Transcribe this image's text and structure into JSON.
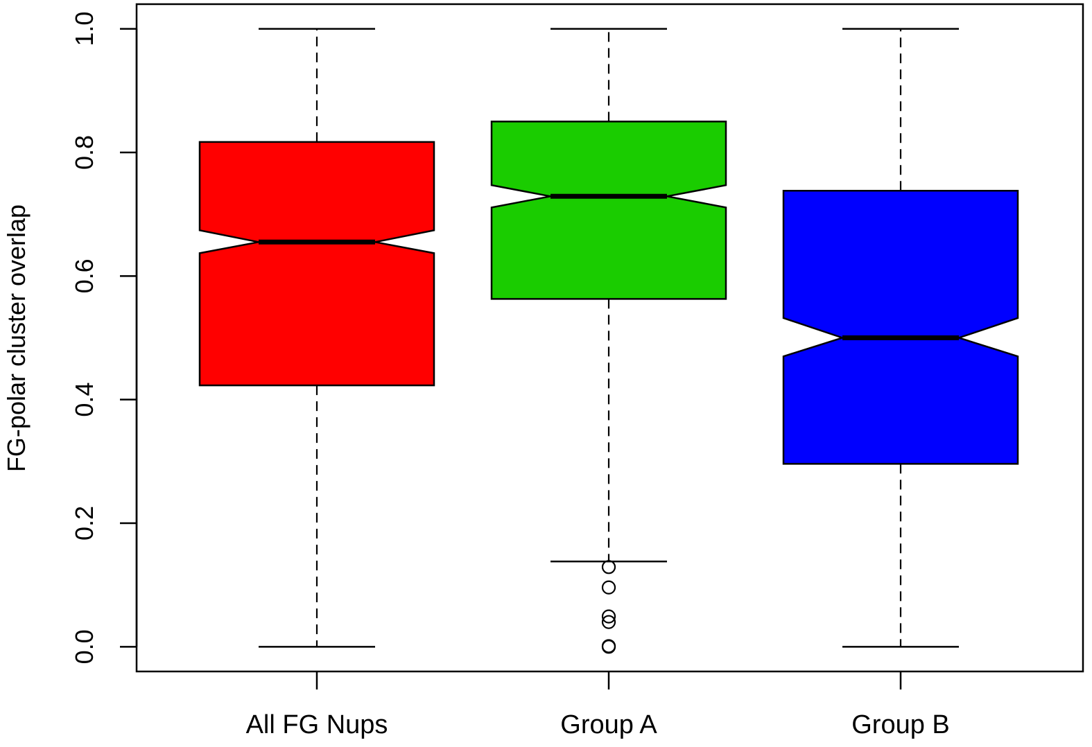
{
  "chart_data": {
    "type": "boxplot",
    "notched": true,
    "title": "",
    "xlabel": "",
    "ylabel": "FG-polar cluster overlap",
    "ylim": [
      -0.04,
      1.04
    ],
    "yticks": [
      0.0,
      0.2,
      0.4,
      0.6,
      0.8,
      1.0
    ],
    "ytick_labels": [
      "0.0",
      "0.2",
      "0.4",
      "0.6",
      "0.8",
      "1.0"
    ],
    "grid": false,
    "categories": [
      "All FG Nups",
      "Group A",
      "Group B"
    ],
    "boxes": [
      {
        "category": "All FG Nups",
        "color": "#ff0000",
        "whisker_low": 0.0,
        "q1": 0.423,
        "median": 0.655,
        "q3": 0.817,
        "whisker_high": 1.0,
        "notch_low": 0.637,
        "notch_high": 0.674,
        "outliers": []
      },
      {
        "category": "Group A",
        "color": "#1acc00",
        "whisker_low": 0.138,
        "q1": 0.563,
        "median": 0.729,
        "q3": 0.85,
        "whisker_high": 1.0,
        "notch_low": 0.711,
        "notch_high": 0.747,
        "outliers": [
          0.129,
          0.096,
          0.049,
          0.04,
          0.001,
          0.0
        ]
      },
      {
        "category": "Group B",
        "color": "#0000ff",
        "whisker_low": 0.0,
        "q1": 0.296,
        "median": 0.5,
        "q3": 0.738,
        "whisker_high": 1.0,
        "notch_low": 0.47,
        "notch_high": 0.532,
        "outliers": []
      }
    ]
  }
}
